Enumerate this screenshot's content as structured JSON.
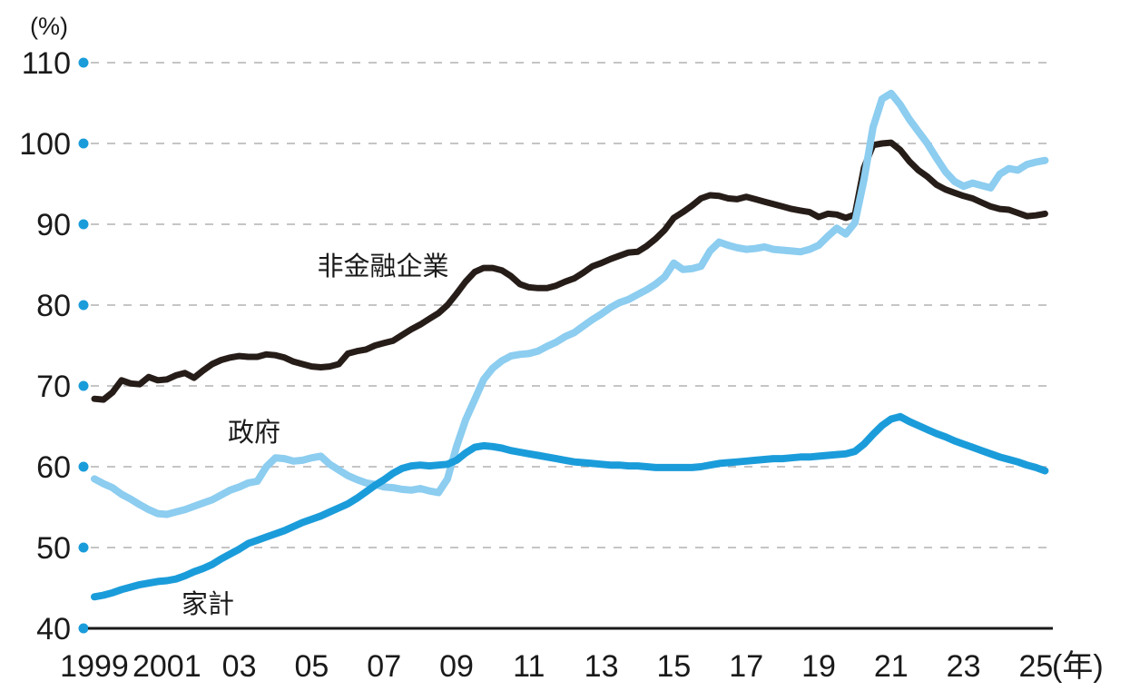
{
  "chart_data": {
    "type": "line",
    "title": "",
    "unit_y": "(%)",
    "unit_x": "(年)",
    "ylim": [
      40,
      110
    ],
    "yticks": [
      40,
      50,
      60,
      70,
      80,
      90,
      100,
      110
    ],
    "grid": "dashed-horizontal",
    "legend_position": "inline-labels",
    "x_start": 1999.0,
    "x_step": 0.25,
    "xticks": [
      {
        "year": 1999,
        "label": "1999"
      },
      {
        "year": 2001,
        "label": "2001"
      },
      {
        "year": 2003,
        "label": "03"
      },
      {
        "year": 2005,
        "label": "05"
      },
      {
        "year": 2007,
        "label": "07"
      },
      {
        "year": 2009,
        "label": "09"
      },
      {
        "year": 2011,
        "label": "11"
      },
      {
        "year": 2013,
        "label": "13"
      },
      {
        "year": 2015,
        "label": "15"
      },
      {
        "year": 2017,
        "label": "17"
      },
      {
        "year": 2019,
        "label": "19"
      },
      {
        "year": 2021,
        "label": "21"
      },
      {
        "year": 2023,
        "label": "23"
      },
      {
        "year": 2025,
        "label": "25"
      }
    ],
    "colors": {
      "axis": "#1a1a1a",
      "grid": "#b2b2b2",
      "tick_dot": "#1b9cda",
      "text": "#1a1a1a"
    },
    "series": [
      {
        "name": "非金融企業",
        "color": "#261c18",
        "stroke_width": 7,
        "values": [
          68.4,
          68.3,
          69.2,
          70.7,
          70.3,
          70.2,
          71.1,
          70.7,
          70.8,
          71.3,
          71.6,
          71.0,
          71.9,
          72.7,
          73.2,
          73.5,
          73.7,
          73.6,
          73.6,
          73.9,
          73.8,
          73.5,
          73.0,
          72.7,
          72.4,
          72.3,
          72.4,
          72.7,
          74.0,
          74.3,
          74.5,
          75.0,
          75.3,
          75.6,
          76.3,
          77.0,
          77.6,
          78.3,
          79.0,
          80.0,
          81.4,
          82.9,
          84.1,
          84.6,
          84.6,
          84.3,
          83.6,
          82.6,
          82.2,
          82.1,
          82.1,
          82.4,
          82.9,
          83.3,
          84.0,
          84.8,
          85.2,
          85.7,
          86.1,
          86.5,
          86.6,
          87.3,
          88.2,
          89.3,
          90.8,
          91.5,
          92.3,
          93.2,
          93.6,
          93.5,
          93.2,
          93.1,
          93.4,
          93.1,
          92.8,
          92.5,
          92.2,
          91.9,
          91.7,
          91.5,
          90.9,
          91.3,
          91.2,
          90.8,
          91.2,
          97.0,
          99.8,
          100.0,
          100.1,
          99.2,
          97.8,
          96.7,
          95.9,
          94.9,
          94.3,
          93.9,
          93.5,
          93.2,
          92.7,
          92.2,
          91.9,
          91.8,
          91.4,
          91.0,
          91.1,
          91.3
        ]
      },
      {
        "name": "政府",
        "color": "#8ccdf0",
        "stroke_width": 8,
        "values": [
          58.5,
          57.9,
          57.4,
          56.6,
          56.0,
          55.3,
          54.7,
          54.2,
          54.1,
          54.4,
          54.7,
          55.1,
          55.5,
          55.9,
          56.5,
          57.1,
          57.5,
          58.0,
          58.2,
          60.0,
          61.1,
          61.0,
          60.7,
          60.8,
          61.1,
          61.3,
          60.3,
          59.6,
          58.9,
          58.4,
          58.0,
          57.8,
          57.5,
          57.4,
          57.2,
          57.1,
          57.3,
          57.0,
          56.8,
          58.5,
          62.5,
          65.8,
          68.3,
          70.8,
          72.2,
          73.1,
          73.7,
          73.9,
          74.0,
          74.3,
          74.9,
          75.4,
          76.1,
          76.6,
          77.4,
          78.2,
          78.9,
          79.7,
          80.3,
          80.7,
          81.3,
          81.9,
          82.6,
          83.5,
          85.2,
          84.4,
          84.5,
          84.8,
          86.7,
          87.8,
          87.4,
          87.1,
          86.9,
          87.0,
          87.2,
          86.9,
          86.8,
          86.7,
          86.6,
          86.9,
          87.4,
          88.5,
          89.5,
          88.8,
          90.2,
          95.5,
          102.0,
          105.5,
          106.2,
          104.8,
          103.0,
          101.5,
          100.0,
          98.2,
          96.5,
          95.3,
          94.7,
          95.1,
          94.8,
          94.5,
          96.2,
          96.9,
          96.7,
          97.4,
          97.7,
          97.9
        ]
      },
      {
        "name": "家計",
        "color": "#1b9cda",
        "stroke_width": 8,
        "values": [
          43.9,
          44.1,
          44.4,
          44.8,
          45.1,
          45.4,
          45.6,
          45.8,
          45.9,
          46.1,
          46.5,
          47.0,
          47.4,
          47.9,
          48.6,
          49.2,
          49.8,
          50.5,
          50.9,
          51.3,
          51.7,
          52.1,
          52.6,
          53.1,
          53.5,
          53.9,
          54.4,
          54.9,
          55.4,
          56.1,
          56.9,
          57.7,
          58.4,
          59.2,
          59.8,
          60.1,
          60.2,
          60.1,
          60.2,
          60.3,
          60.8,
          61.7,
          62.4,
          62.6,
          62.5,
          62.3,
          62.0,
          61.8,
          61.6,
          61.4,
          61.2,
          61.0,
          60.8,
          60.6,
          60.5,
          60.4,
          60.3,
          60.2,
          60.2,
          60.1,
          60.1,
          60.0,
          59.9,
          59.9,
          59.9,
          59.9,
          59.9,
          60.0,
          60.2,
          60.4,
          60.5,
          60.6,
          60.7,
          60.8,
          60.9,
          61.0,
          61.0,
          61.1,
          61.2,
          61.2,
          61.3,
          61.4,
          61.5,
          61.6,
          61.9,
          62.8,
          64.0,
          65.1,
          65.9,
          66.2,
          65.6,
          65.1,
          64.6,
          64.1,
          63.7,
          63.2,
          62.8,
          62.4,
          62.0,
          61.6,
          61.2,
          60.9,
          60.6,
          60.2,
          59.9,
          59.5
        ]
      }
    ]
  }
}
